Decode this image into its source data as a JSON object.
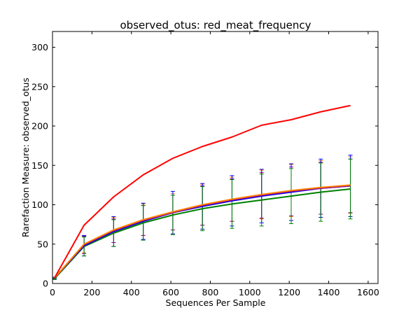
{
  "chart_data": {
    "type": "line",
    "title": "observed_otus: red_meat_frequency",
    "xlabel": "Sequences Per Sample",
    "ylabel": "Rarefaction Measure: observed_otus",
    "xlim": [
      0,
      1650
    ],
    "ylim": [
      0,
      320
    ],
    "xticks": [
      0,
      200,
      400,
      600,
      800,
      1000,
      1200,
      1400,
      1600
    ],
    "yticks": [
      0,
      50,
      100,
      150,
      200,
      250,
      300
    ],
    "grid": false,
    "x": [
      10,
      160,
      310,
      460,
      610,
      760,
      910,
      1060,
      1210,
      1360,
      1510
    ],
    "series": [
      {
        "color": "#ff0000",
        "values": [
          7,
          74,
          110,
          138,
          159,
          174,
          186,
          201,
          208,
          218,
          226
        ],
        "errors": [
          0,
          0,
          0,
          0,
          0,
          0,
          0,
          0,
          0,
          0,
          0
        ]
      },
      {
        "color": "#ff8000",
        "values": [
          7,
          50,
          68,
          81,
          91,
          100,
          107,
          113,
          118,
          122,
          125
        ],
        "errors": [
          1,
          11,
          16,
          20,
          23,
          26,
          28,
          31,
          33,
          34,
          36
        ]
      },
      {
        "color": "#8b008b",
        "values": [
          7,
          49,
          67,
          80,
          90,
          99,
          106,
          112,
          117,
          121,
          124
        ],
        "errors": [
          1,
          11,
          15,
          19,
          22,
          25,
          27,
          29,
          31,
          33,
          34
        ]
      },
      {
        "color": "#0000ff",
        "values": [
          7,
          48,
          66,
          79,
          90,
          98,
          105,
          111,
          116,
          121,
          124
        ],
        "errors": [
          1,
          13,
          19,
          23,
          27,
          29,
          32,
          34,
          36,
          37,
          39
        ]
      },
      {
        "color": "#008000",
        "values": [
          6,
          47,
          64,
          77,
          87,
          95,
          101,
          106,
          111,
          116,
          120
        ],
        "errors": [
          1,
          12,
          17,
          22,
          25,
          28,
          31,
          33,
          35,
          37,
          38
        ]
      }
    ]
  }
}
